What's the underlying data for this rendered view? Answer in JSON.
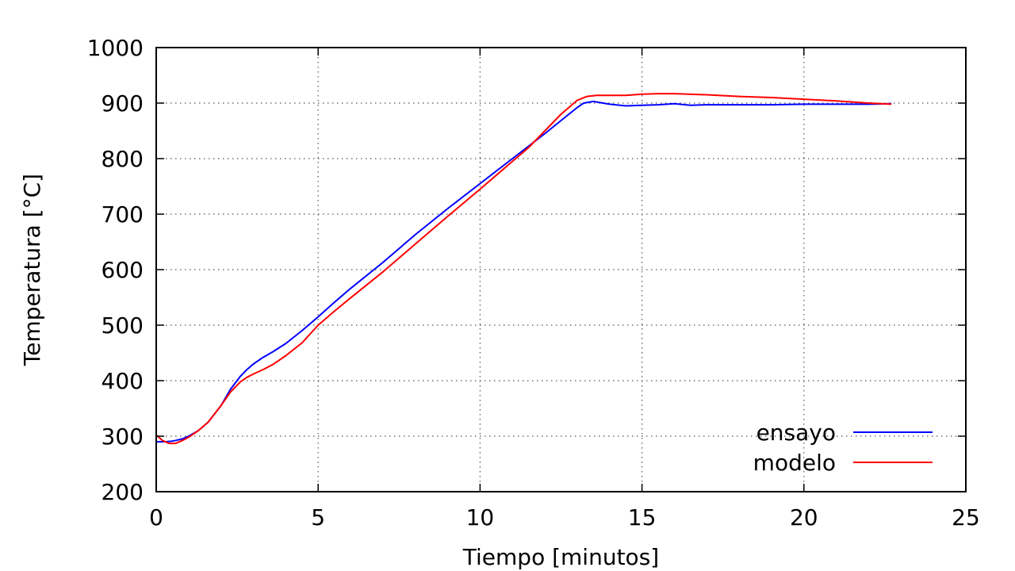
{
  "chart_data": {
    "type": "line",
    "title": "",
    "xlabel": "Tiempo [minutos]",
    "ylabel": "Temperatura [°C]",
    "xlim": [
      0,
      25
    ],
    "ylim": [
      200,
      1000
    ],
    "x_ticks": [
      0,
      5,
      10,
      15,
      20,
      25
    ],
    "y_ticks": [
      200,
      300,
      400,
      500,
      600,
      700,
      800,
      900,
      1000
    ],
    "x_tick_labels": [
      "0",
      "5",
      "10",
      "15",
      "20",
      "25"
    ],
    "y_tick_labels": [
      "200",
      "300",
      "400",
      "500",
      "600",
      "700",
      "800",
      "900",
      "1000"
    ],
    "grid": true,
    "legend_position": "bottom-right",
    "series": [
      {
        "name": "ensayo",
        "color": "#0000ff",
        "points": [
          [
            0,
            290
          ],
          [
            0.3,
            290
          ],
          [
            0.5,
            291
          ],
          [
            0.8,
            295
          ],
          [
            1.0,
            300
          ],
          [
            1.3,
            310
          ],
          [
            1.6,
            325
          ],
          [
            2.0,
            355
          ],
          [
            2.3,
            385
          ],
          [
            2.6,
            408
          ],
          [
            2.8,
            420
          ],
          [
            3.0,
            430
          ],
          [
            3.3,
            442
          ],
          [
            3.6,
            452
          ],
          [
            4.0,
            467
          ],
          [
            4.5,
            490
          ],
          [
            5.0,
            515
          ],
          [
            5.5,
            541
          ],
          [
            6.0,
            566
          ],
          [
            7.0,
            613
          ],
          [
            8.0,
            663
          ],
          [
            9.0,
            710
          ],
          [
            10.0,
            755
          ],
          [
            11.0,
            800
          ],
          [
            12.0,
            845
          ],
          [
            12.7,
            878
          ],
          [
            13.0,
            892
          ],
          [
            13.2,
            900
          ],
          [
            13.5,
            903
          ],
          [
            13.8,
            900
          ],
          [
            14.0,
            898
          ],
          [
            14.5,
            895
          ],
          [
            15.0,
            896
          ],
          [
            15.5,
            897
          ],
          [
            16.0,
            899
          ],
          [
            16.5,
            896
          ],
          [
            17.0,
            897
          ],
          [
            18.0,
            897
          ],
          [
            19.0,
            897
          ],
          [
            20.0,
            898
          ],
          [
            21.0,
            898
          ],
          [
            22.0,
            898
          ],
          [
            22.7,
            899
          ]
        ]
      },
      {
        "name": "modelo",
        "color": "#ff0000",
        "points": [
          [
            0,
            302
          ],
          [
            0.2,
            292
          ],
          [
            0.4,
            287
          ],
          [
            0.6,
            287
          ],
          [
            0.8,
            292
          ],
          [
            1.0,
            298
          ],
          [
            1.3,
            310
          ],
          [
            1.6,
            325
          ],
          [
            2.0,
            355
          ],
          [
            2.3,
            380
          ],
          [
            2.6,
            398
          ],
          [
            2.8,
            406
          ],
          [
            3.0,
            412
          ],
          [
            3.3,
            420
          ],
          [
            3.6,
            429
          ],
          [
            4.0,
            445
          ],
          [
            4.5,
            468
          ],
          [
            5.0,
            500
          ],
          [
            5.5,
            525
          ],
          [
            6.0,
            549
          ],
          [
            7.0,
            596
          ],
          [
            8.0,
            646
          ],
          [
            9.0,
            696
          ],
          [
            10.0,
            745
          ],
          [
            11.0,
            795
          ],
          [
            11.5,
            820
          ],
          [
            12.0,
            850
          ],
          [
            12.5,
            880
          ],
          [
            13.0,
            905
          ],
          [
            13.3,
            912
          ],
          [
            13.6,
            914
          ],
          [
            14.0,
            914
          ],
          [
            14.5,
            914
          ],
          [
            15.0,
            916
          ],
          [
            15.5,
            917
          ],
          [
            16.0,
            917
          ],
          [
            17.0,
            915
          ],
          [
            18.0,
            912
          ],
          [
            19.0,
            910
          ],
          [
            20.0,
            907
          ],
          [
            21.0,
            904
          ],
          [
            22.0,
            900
          ],
          [
            22.7,
            898
          ]
        ]
      }
    ]
  }
}
